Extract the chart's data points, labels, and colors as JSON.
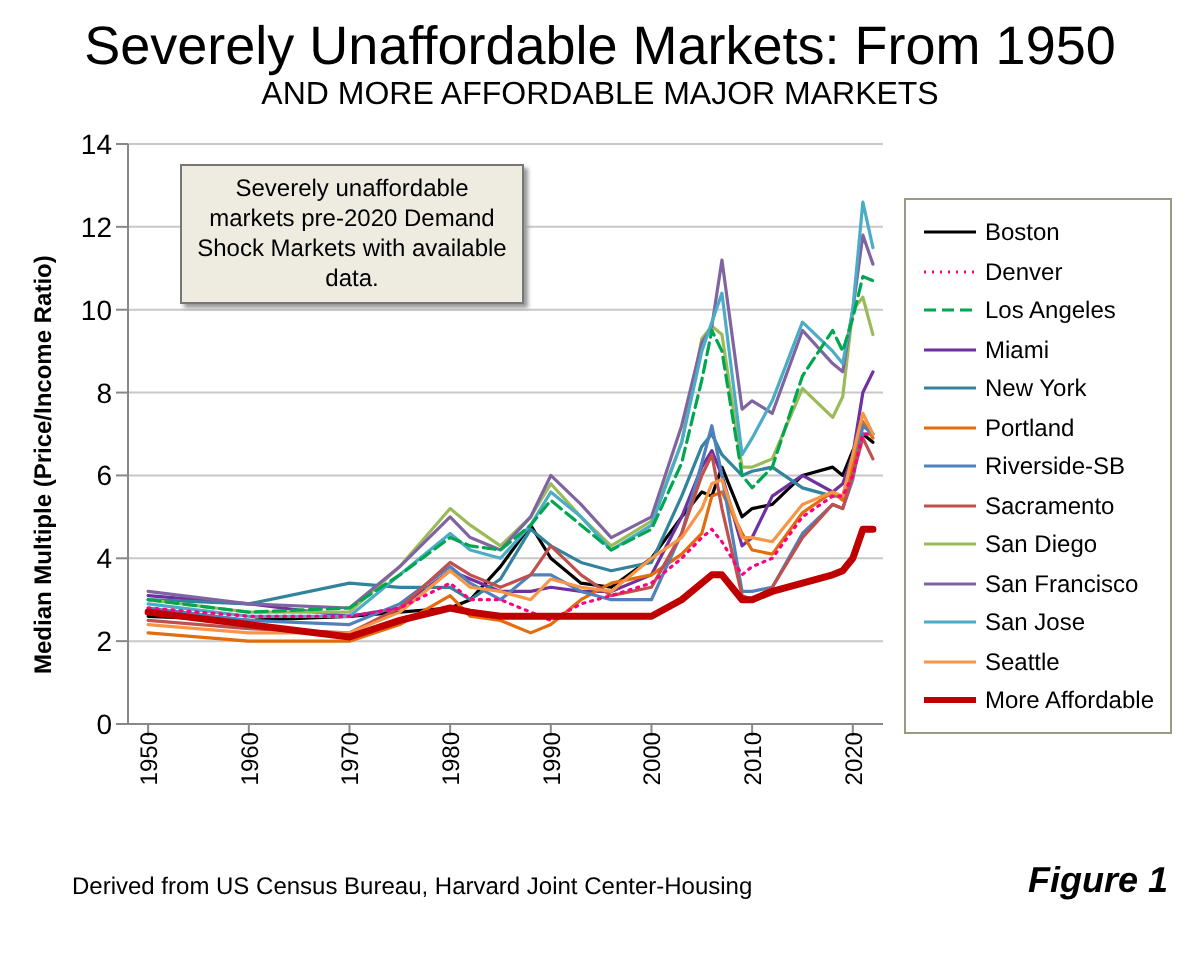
{
  "chart_data": {
    "type": "line",
    "title": "Severely Unaffordable Markets: From 1950",
    "subtitle": "AND MORE AFFORDABLE MAJOR MARKETS",
    "ylabel": "Median Multiple (Price/Income Ratio)",
    "annotations": [
      "Severely unaffordable markets pre-2020 Demand Shock Markets with available data.",
      "Derived from US Census Bureau, Harvard Joint Center-Housing",
      "Figure 1"
    ],
    "x": [
      1950,
      1960,
      1970,
      1975,
      1980,
      1982,
      1985,
      1988,
      1990,
      1993,
      1996,
      2000,
      2003,
      2005,
      2006,
      2007,
      2009,
      2010,
      2012,
      2015,
      2018,
      2019,
      2020,
      2021,
      2022
    ],
    "xlim": [
      1948,
      2023
    ],
    "xticks": [
      1950,
      1960,
      1970,
      1980,
      1990,
      2000,
      2010,
      2020
    ],
    "ylim": [
      0,
      14
    ],
    "yticks": [
      0,
      2,
      4,
      6,
      8,
      10,
      12,
      14
    ],
    "grid": "y",
    "legend": "right",
    "marker": "none",
    "series": [
      {
        "name": "Boston",
        "color": "#000000",
        "line_style": "solid",
        "values": [
          2.6,
          2.5,
          2.6,
          2.7,
          2.8,
          3.0,
          3.8,
          4.8,
          4.0,
          3.4,
          3.3,
          4.0,
          5.0,
          5.6,
          5.5,
          6.2,
          5.0,
          5.2,
          5.3,
          6.0,
          6.2,
          6.0,
          6.6,
          7.0,
          6.8
        ]
      },
      {
        "name": "Denver",
        "color": "#ff0080",
        "line_style": "dotted",
        "values": [
          2.8,
          2.6,
          2.6,
          2.8,
          3.4,
          3.0,
          3.0,
          2.7,
          2.5,
          2.9,
          3.1,
          3.4,
          4.0,
          4.5,
          4.7,
          4.4,
          3.6,
          3.8,
          4.0,
          5.0,
          5.5,
          5.5,
          6.0,
          7.0,
          7.0
        ]
      },
      {
        "name": "Los Angeles",
        "color": "#00a650",
        "line_style": "dashed",
        "values": [
          3.0,
          2.7,
          2.8,
          3.6,
          4.5,
          4.3,
          4.2,
          4.8,
          5.4,
          4.8,
          4.2,
          4.7,
          6.3,
          8.3,
          9.5,
          9.0,
          6.0,
          5.7,
          6.2,
          8.4,
          9.5,
          9.0,
          9.8,
          10.8,
          10.7
        ]
      },
      {
        "name": "Miami",
        "color": "#7030a0",
        "line_style": "solid",
        "values": [
          3.1,
          2.9,
          2.6,
          2.8,
          3.7,
          3.5,
          3.2,
          3.2,
          3.3,
          3.2,
          3.2,
          3.6,
          5.0,
          6.2,
          6.6,
          6.0,
          4.3,
          4.5,
          5.5,
          6.0,
          5.6,
          5.8,
          6.5,
          8.0,
          8.5
        ]
      },
      {
        "name": "New York",
        "color": "#31849b",
        "line_style": "solid",
        "values": [
          3.0,
          2.9,
          3.4,
          3.3,
          3.3,
          3.0,
          3.5,
          4.7,
          4.3,
          3.9,
          3.7,
          3.9,
          5.5,
          6.7,
          7.0,
          6.5,
          6.0,
          6.1,
          6.2,
          5.7,
          5.5,
          5.5,
          6.2,
          7.0,
          7.0
        ]
      },
      {
        "name": "Portland",
        "color": "#e46c0a",
        "line_style": "solid",
        "values": [
          2.2,
          2.0,
          2.0,
          2.4,
          3.1,
          2.6,
          2.5,
          2.2,
          2.4,
          3.0,
          3.4,
          3.6,
          4.1,
          4.6,
          5.5,
          5.6,
          4.6,
          4.2,
          4.1,
          5.1,
          5.6,
          5.4,
          6.3,
          7.3,
          6.9
        ]
      },
      {
        "name": "Riverside-SB",
        "color": "#4f81bd",
        "line_style": "solid",
        "values": [
          2.8,
          2.5,
          2.4,
          2.9,
          3.8,
          3.4,
          3.0,
          3.6,
          3.6,
          3.2,
          3.0,
          3.0,
          4.6,
          6.3,
          7.2,
          6.0,
          3.2,
          3.2,
          3.3,
          4.6,
          5.3,
          5.2,
          5.9,
          7.2,
          7.0
        ]
      },
      {
        "name": "Sacramento",
        "color": "#c0504d",
        "line_style": "solid",
        "values": [
          2.5,
          2.3,
          2.2,
          2.8,
          3.9,
          3.6,
          3.3,
          3.6,
          4.3,
          3.6,
          3.1,
          3.3,
          4.6,
          6.0,
          6.5,
          5.2,
          3.1,
          3.0,
          3.3,
          4.5,
          5.3,
          5.2,
          6.0,
          6.9,
          6.4
        ]
      },
      {
        "name": "San Diego",
        "color": "#9bbb59",
        "line_style": "solid",
        "values": [
          3.0,
          2.7,
          2.7,
          3.8,
          5.2,
          4.8,
          4.3,
          5.0,
          5.8,
          5.0,
          4.3,
          4.9,
          6.8,
          9.3,
          9.6,
          9.4,
          6.2,
          6.2,
          6.4,
          8.1,
          7.4,
          7.9,
          10.0,
          10.3,
          9.4
        ]
      },
      {
        "name": "San Francisco",
        "color": "#8064a2",
        "line_style": "solid",
        "values": [
          3.2,
          2.9,
          2.8,
          3.8,
          5.0,
          4.5,
          4.2,
          5.0,
          6.0,
          5.3,
          4.5,
          5.0,
          7.2,
          9.2,
          9.6,
          11.2,
          7.6,
          7.8,
          7.5,
          9.5,
          8.7,
          8.5,
          10.0,
          11.8,
          11.1
        ]
      },
      {
        "name": "San Jose",
        "color": "#4bacc6",
        "line_style": "solid",
        "values": [
          2.9,
          2.6,
          2.6,
          3.6,
          4.6,
          4.2,
          4.0,
          4.8,
          5.6,
          5.0,
          4.2,
          4.8,
          6.8,
          9.0,
          9.7,
          10.4,
          6.5,
          6.9,
          7.8,
          9.7,
          9.0,
          8.7,
          10.0,
          12.6,
          11.5
        ]
      },
      {
        "name": "Seattle",
        "color": "#f79646",
        "line_style": "solid",
        "values": [
          2.4,
          2.2,
          2.2,
          2.7,
          3.7,
          3.3,
          3.2,
          3.0,
          3.5,
          3.3,
          3.2,
          4.0,
          4.5,
          5.2,
          5.8,
          5.9,
          4.5,
          4.5,
          4.4,
          5.3,
          5.6,
          5.5,
          6.5,
          7.5,
          7.0
        ]
      },
      {
        "name": "More Affordable",
        "color": "#c00000",
        "line_style": "solid",
        "values": [
          2.7,
          2.4,
          2.1,
          2.5,
          2.8,
          2.7,
          2.6,
          2.6,
          2.6,
          2.6,
          2.6,
          2.6,
          3.0,
          3.4,
          3.6,
          3.6,
          3.0,
          3.0,
          3.2,
          3.4,
          3.6,
          3.7,
          4.0,
          4.7,
          4.7
        ]
      }
    ]
  }
}
